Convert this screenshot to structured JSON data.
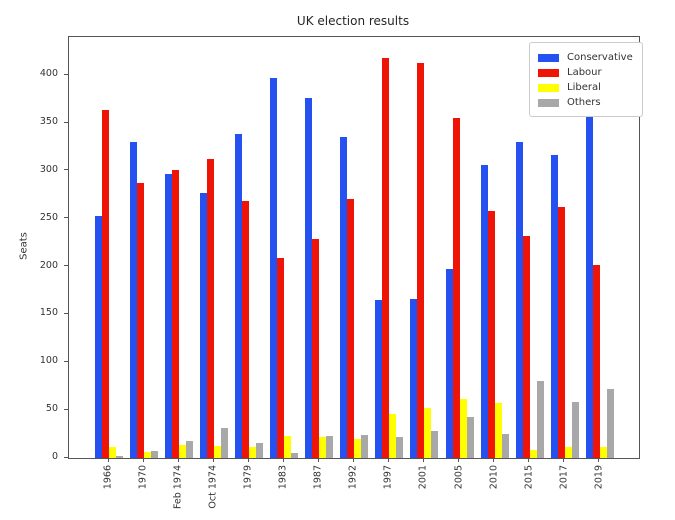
{
  "title": "UK election results",
  "ylabel": "Seats",
  "chart_data": {
    "type": "bar",
    "title": "UK election results",
    "xlabel": "",
    "ylabel": "Seats",
    "categories": [
      "1966",
      "1970",
      "Feb 1974",
      "Oct 1974",
      "1979",
      "1983",
      "1987",
      "1992",
      "1997",
      "2001",
      "2005",
      "2010",
      "2015",
      "2017",
      "2019"
    ],
    "series": [
      {
        "name": "Conservative",
        "color": "#2451f0",
        "values": [
          253,
          330,
          297,
          277,
          339,
          397,
          376,
          336,
          165,
          166,
          198,
          306,
          330,
          317,
          365
        ]
      },
      {
        "name": "Labour",
        "color": "#ee1506",
        "values": [
          364,
          287,
          301,
          313,
          269,
          209,
          229,
          271,
          418,
          413,
          355,
          258,
          232,
          262,
          202
        ]
      },
      {
        "name": "Liberal",
        "color": "#ffff00",
        "values": [
          12,
          6,
          14,
          13,
          11,
          23,
          22,
          20,
          46,
          52,
          62,
          57,
          8,
          12,
          11
        ]
      },
      {
        "name": "Others",
        "color": "#a8a8a8",
        "values": [
          2,
          7,
          18,
          31,
          16,
          5,
          23,
          24,
          22,
          28,
          43,
          25,
          80,
          59,
          72
        ]
      }
    ],
    "ylim": [
      0,
      440
    ],
    "yticks": [
      0,
      50,
      100,
      150,
      200,
      250,
      300,
      350,
      400
    ],
    "grid": false,
    "legend_position": "upper right",
    "legend_labels": [
      "Conservative",
      "Labour",
      "Liberal",
      "Others"
    ]
  }
}
